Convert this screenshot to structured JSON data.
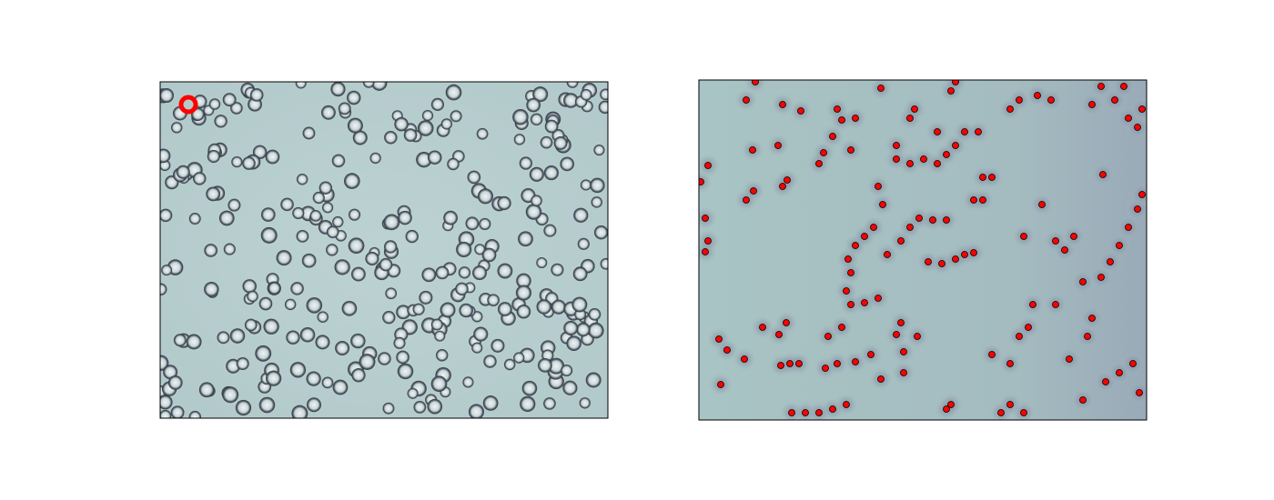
{
  "chart_data": {
    "type": "scatter",
    "color": "#ff0000",
    "xlim": [
      0,
      492
    ],
    "ylim": [
      374,
      0
    ],
    "x": [
      24,
      22,
      31,
      50,
      70,
      88,
      96,
      90,
      100,
      110,
      102,
      117,
      132,
      147,
      162,
      139,
      152,
      172,
      189,
      200,
      225,
      225,
      240,
      217,
      222,
      142,
      157,
      167,
      182,
      197,
      162,
      167,
      164,
      172,
      182,
      192,
      207,
      222,
      232,
      242,
      257,
      272,
      252,
      267,
      282,
      292,
      302,
      322,
      342,
      352,
      362,
      367,
      392,
      407,
      422,
      447,
      462,
      477,
      484,
      427,
      432,
      422,
      442,
      452,
      462,
      472,
      482,
      487,
      392,
      402,
      412,
      357,
      377,
      444,
      7,
      10,
      7,
      2,
      10,
      52,
      60,
      92,
      97,
      132,
      137,
      147,
      167,
      172,
      157,
      152,
      197,
      202,
      217,
      217,
      232,
      247,
      262,
      272,
      282,
      232,
      237,
      277,
      282,
      302,
      312,
      312,
      322,
      342,
      352,
      372,
      387,
      432,
      442,
      457,
      472,
      482,
      487,
      467,
      59,
      87,
      92,
      112,
      52,
      62,
      200,
      262,
      292,
      307,
      332,
      342,
      272,
      277,
      357
    ],
    "y": [
      39,
      89,
      77,
      67,
      102,
      94,
      107,
      60,
      62,
      62,
      8,
      8,
      8,
      12,
      17,
      57,
      62,
      64,
      72,
      45,
      52,
      75,
      92,
      94,
      107,
      92,
      102,
      127,
      129,
      134,
      142,
      162,
      177,
      192,
      202,
      212,
      182,
      197,
      212,
      222,
      220,
      220,
      174,
      172,
      177,
      182,
      184,
      72,
      62,
      92,
      102,
      127,
      127,
      67,
      22,
      42,
      52,
      62,
      30,
      92,
      112,
      152,
      157,
      174,
      192,
      212,
      232,
      248,
      197,
      187,
      202,
      202,
      237,
      270,
      185,
      197,
      222,
      262,
      280,
      242,
      252,
      257,
      264,
      282,
      294,
      312,
      297,
      332,
      330,
      342,
      257,
      237,
      287,
      302,
      282,
      287,
      282,
      292,
      302,
      332,
      342,
      362,
      372,
      242,
      242,
      267,
      267,
      342,
      352,
      357,
      352,
      347,
      367,
      352,
      332,
      322,
      342,
      367,
      297,
      302,
      347,
      340,
      352,
      372,
      365,
      317,
      317,
      317,
      8,
      17,
      12,
      17,
      8
    ]
  }
}
